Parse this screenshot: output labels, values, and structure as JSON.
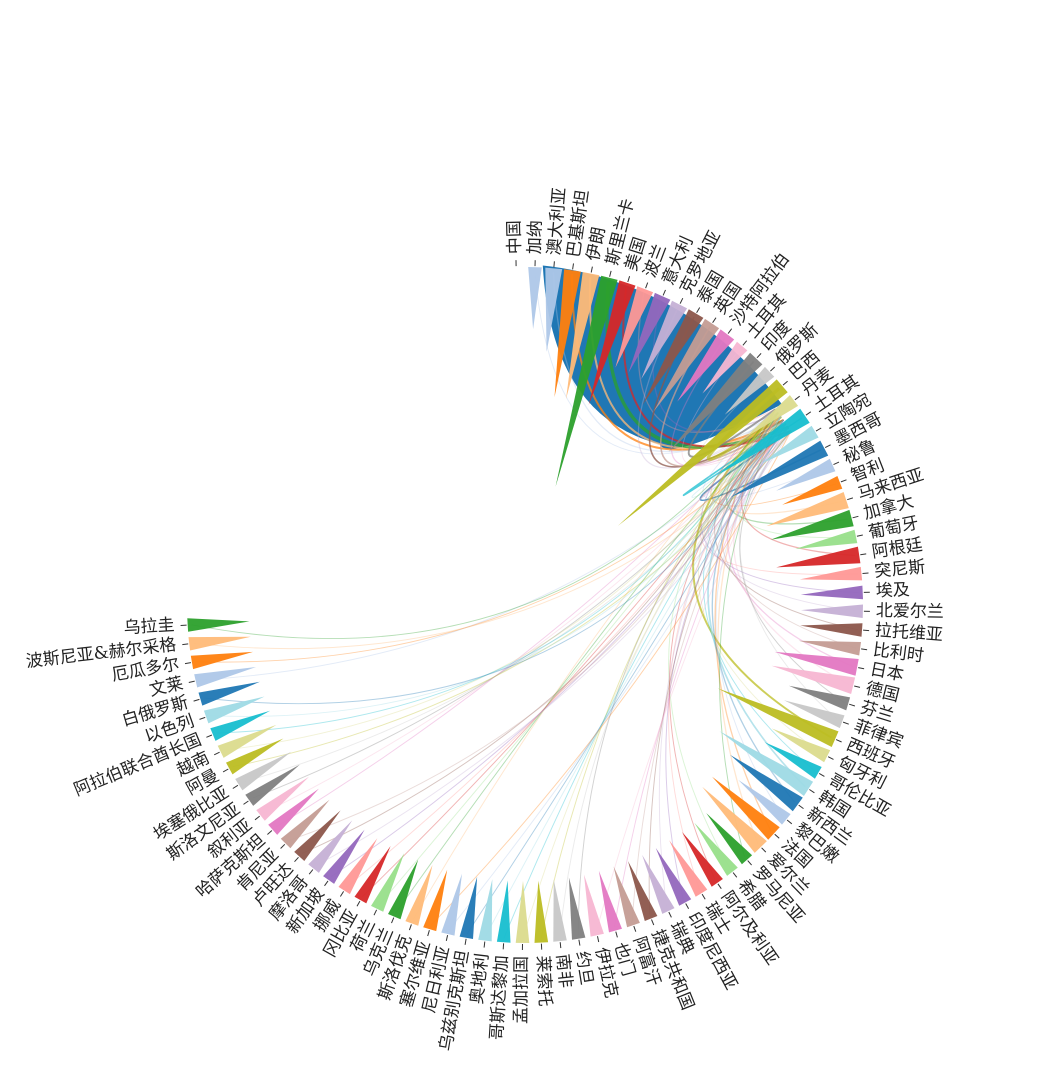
{
  "chart_data": {
    "type": "chord",
    "title": "",
    "center_node": "中国",
    "nodes": [
      {
        "name": "中国",
        "color": "#1f77b4",
        "weight": 0
      },
      {
        "name": "加纳",
        "color": "#aec7e8",
        "weight": 1
      },
      {
        "name": "澳大利亚",
        "color": "#aec7e8",
        "weight": 2
      },
      {
        "name": "巴基斯坦",
        "color": "#ff7f0e",
        "weight": 4
      },
      {
        "name": "伊朗",
        "color": "#ffbb78",
        "weight": 4
      },
      {
        "name": "斯里兰卡",
        "color": "#2ca02c",
        "weight": 8
      },
      {
        "name": "美国",
        "color": "#d62728",
        "weight": 4
      },
      {
        "name": "波兰",
        "color": "#ff9896",
        "weight": 2
      },
      {
        "name": "意大利",
        "color": "#9467bd",
        "weight": 2
      },
      {
        "name": "克罗地亚",
        "color": "#c5b0d5",
        "weight": 2
      },
      {
        "name": "泰国",
        "color": "#8c564b",
        "weight": 3
      },
      {
        "name": "英国",
        "color": "#c49c94",
        "weight": 3
      },
      {
        "name": "沙特阿拉伯",
        "color": "#e377c2",
        "weight": 2
      },
      {
        "name": "土耳其",
        "color": "#f7b6d2",
        "weight": 1
      },
      {
        "name": "印度",
        "color": "#7f7f7f",
        "weight": 4
      },
      {
        "name": "俄罗斯",
        "color": "#c7c7c7",
        "weight": 1
      },
      {
        "name": "巴西",
        "color": "#bcbd22",
        "weight": 8
      },
      {
        "name": "丹麦",
        "color": "#dbdb8d",
        "weight": 1
      },
      {
        "name": "土耳其",
        "color": "#17becf",
        "weight": 3
      },
      {
        "name": "立陶宛",
        "color": "#9edae5",
        "weight": 1
      },
      {
        "name": "墨西哥",
        "color": "#1f77b4",
        "weight": 3
      },
      {
        "name": "秘鲁",
        "color": "#aec7e8",
        "weight": 1
      },
      {
        "name": "智利",
        "color": "#ff7f0e",
        "weight": 1
      },
      {
        "name": "马来西亚",
        "color": "#ffbb78",
        "weight": 2
      },
      {
        "name": "加拿大",
        "color": "#2ca02c",
        "weight": 2
      },
      {
        "name": "葡萄牙",
        "color": "#98df8a",
        "weight": 1
      },
      {
        "name": "阿根廷",
        "color": "#d62728",
        "weight": 2
      },
      {
        "name": "突尼斯",
        "color": "#ff9896",
        "weight": 1
      },
      {
        "name": "埃及",
        "color": "#9467bd",
        "weight": 1
      },
      {
        "name": "北爱尔兰",
        "color": "#c5b0d5",
        "weight": 1
      },
      {
        "name": "拉托维亚",
        "color": "#8c564b",
        "weight": 1
      },
      {
        "name": "比利时",
        "color": "#c49c94",
        "weight": 1
      },
      {
        "name": "日本",
        "color": "#e377c2",
        "weight": 2
      },
      {
        "name": "德国",
        "color": "#f7b6d2",
        "weight": 2
      },
      {
        "name": "芬兰",
        "color": "#7f7f7f",
        "weight": 1
      },
      {
        "name": "菲律宾",
        "color": "#c7c7c7",
        "weight": 1
      },
      {
        "name": "西班牙",
        "color": "#bcbd22",
        "weight": 4
      },
      {
        "name": "匈牙利",
        "color": "#dbdb8d",
        "weight": 1
      },
      {
        "name": "哥伦比亚",
        "color": "#17becf",
        "weight": 1
      },
      {
        "name": "韩国",
        "color": "#9edae5",
        "weight": 3
      },
      {
        "name": "新西兰",
        "color": "#1f77b4",
        "weight": 2
      },
      {
        "name": "黎巴嫩",
        "color": "#aec7e8",
        "weight": 1
      },
      {
        "name": "法国",
        "color": "#ff7f0e",
        "weight": 2
      },
      {
        "name": "爱尔兰",
        "color": "#ffbb78",
        "weight": 2
      },
      {
        "name": "罗马尼亚",
        "color": "#2ca02c",
        "weight": 1
      },
      {
        "name": "希腊",
        "color": "#98df8a",
        "weight": 1
      },
      {
        "name": "阿尔及利亚",
        "color": "#d62728",
        "weight": 1
      },
      {
        "name": "瑞士",
        "color": "#ff9896",
        "weight": 1
      },
      {
        "name": "印度尼西亚",
        "color": "#9467bd",
        "weight": 1
      },
      {
        "name": "瑞典",
        "color": "#c5b0d5",
        "weight": 1
      },
      {
        "name": "捷克共和国",
        "color": "#8c564b",
        "weight": 1
      },
      {
        "name": "阿富汗",
        "color": "#c49c94",
        "weight": 1
      },
      {
        "name": "也门",
        "color": "#e377c2",
        "weight": 1
      },
      {
        "name": "伊拉克",
        "color": "#f7b6d2",
        "weight": 1
      },
      {
        "name": "约旦",
        "color": "#7f7f7f",
        "weight": 1
      },
      {
        "name": "南非",
        "color": "#c7c7c7",
        "weight": 1
      },
      {
        "name": "莱索托",
        "color": "#bcbd22",
        "weight": 1
      },
      {
        "name": "孟加拉国",
        "color": "#dbdb8d",
        "weight": 1
      },
      {
        "name": "哥斯达黎加",
        "color": "#17becf",
        "weight": 1
      },
      {
        "name": "奥地利",
        "color": "#9edae5",
        "weight": 1
      },
      {
        "name": "乌兹别克斯坦",
        "color": "#1f77b4",
        "weight": 1
      },
      {
        "name": "尼日利亚",
        "color": "#aec7e8",
        "weight": 1
      },
      {
        "name": "塞尔维亚",
        "color": "#ff7f0e",
        "weight": 1
      },
      {
        "name": "斯洛伐克",
        "color": "#ffbb78",
        "weight": 1
      },
      {
        "name": "乌克兰",
        "color": "#2ca02c",
        "weight": 1
      },
      {
        "name": "荷兰",
        "color": "#98df8a",
        "weight": 1
      },
      {
        "name": "冈比亚",
        "color": "#d62728",
        "weight": 1
      },
      {
        "name": "挪威",
        "color": "#ff9896",
        "weight": 1
      },
      {
        "name": "新加坡",
        "color": "#9467bd",
        "weight": 1
      },
      {
        "name": "摩洛哥",
        "color": "#c5b0d5",
        "weight": 1
      },
      {
        "name": "卢旺达",
        "color": "#8c564b",
        "weight": 1
      },
      {
        "name": "肯尼亚",
        "color": "#c49c94",
        "weight": 1
      },
      {
        "name": "哈萨克斯坦",
        "color": "#e377c2",
        "weight": 1
      },
      {
        "name": "叙利亚",
        "color": "#f7b6d2",
        "weight": 1
      },
      {
        "name": "斯洛文尼亚",
        "color": "#7f7f7f",
        "weight": 1
      },
      {
        "name": "埃塞俄比亚",
        "color": "#c7c7c7",
        "weight": 1
      },
      {
        "name": "阿曼",
        "color": "#bcbd22",
        "weight": 1
      },
      {
        "name": "越南",
        "color": "#dbdb8d",
        "weight": 1
      },
      {
        "name": "阿拉伯联合酋长国",
        "color": "#17becf",
        "weight": 1
      },
      {
        "name": "以色列",
        "color": "#9edae5",
        "weight": 1
      },
      {
        "name": "白俄罗斯",
        "color": "#1f77b4",
        "weight": 1
      },
      {
        "name": "文莱",
        "color": "#aec7e8",
        "weight": 1
      },
      {
        "name": "厄瓜多尔",
        "color": "#ff7f0e",
        "weight": 1
      },
      {
        "name": "波斯尼亚&赫尔采格",
        "color": "#ffbb78",
        "weight": 1
      },
      {
        "name": "乌拉圭",
        "color": "#2ca02c",
        "weight": 1
      }
    ]
  }
}
